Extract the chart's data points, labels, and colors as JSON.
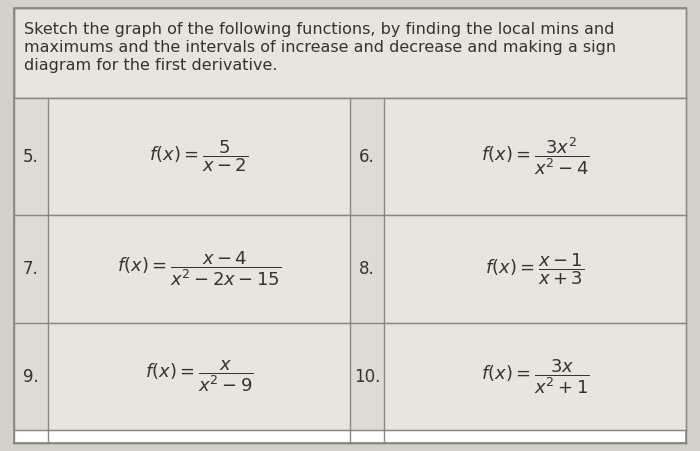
{
  "title_text": "Sketch the graph of the following functions, by finding the local mins and\nmaximums and the intervals of increase and decrease and making a sign\ndiagram for the first derivative.",
  "bg_color": "#d4d0cb",
  "cell_color": "#e8e4de",
  "border_color": "#888880",
  "text_color": "#333333",
  "cells": [
    {
      "num": "5.",
      "expr": "$f(x) = \\dfrac{5}{x-2}$"
    },
    {
      "num": "6.",
      "expr": "$f(x) = \\dfrac{3x^2}{x^2-4}$"
    },
    {
      "num": "7.",
      "expr": "$f(x) = \\dfrac{x-4}{x^2-2x-15}$"
    },
    {
      "num": "8.",
      "expr": "$f(x) = \\dfrac{x-1}{x+3}$"
    },
    {
      "num": "9.",
      "expr": "$f(x) = \\dfrac{x}{x^2-9}$"
    },
    {
      "num": "10.",
      "expr": "$f(x) = \\dfrac{3x}{x^2+1}$"
    }
  ],
  "header_fontsize": 11.5,
  "num_fontsize": 12,
  "expr_fontsize": 13
}
